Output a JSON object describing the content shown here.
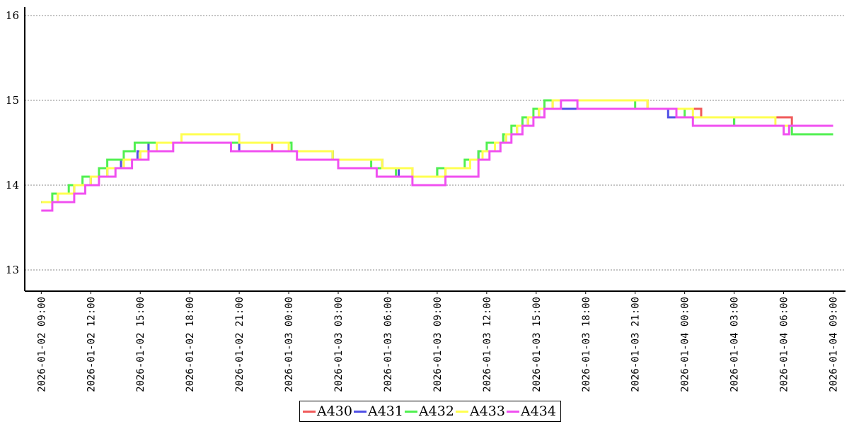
{
  "chart_data": {
    "type": "line",
    "title": "",
    "xlabel": "",
    "ylabel": "",
    "ylim": [
      12.75,
      16.1
    ],
    "y_ticks": [
      "13",
      "14",
      "15",
      "16"
    ],
    "grid": "horizontal dotted",
    "legend_position": "bottom-center",
    "x_ticks": [
      "2026-01-02 09:00",
      "2026-01-02 12:00",
      "2026-01-02 15:00",
      "2026-01-02 18:00",
      "2026-01-02 21:00",
      "2026-01-03 00:00",
      "2026-01-03 03:00",
      "2026-01-03 06:00",
      "2026-01-03 09:00",
      "2026-01-03 12:00",
      "2026-01-03 15:00",
      "2026-01-03 18:00",
      "2026-01-03 21:00",
      "2026-01-04 00:00",
      "2026-01-04 03:00",
      "2026-01-04 06:00",
      "2026-01-04 09:00"
    ],
    "xlim": [
      "2026-01-02 08:00",
      "2026-01-04 09:45"
    ],
    "series": [
      {
        "name": "A430",
        "color": "#f05a5a",
        "points": [
          [
            "2026-01-02 09:00",
            13.8
          ],
          [
            "2026-01-02 10:00",
            13.9
          ],
          [
            "2026-01-02 11:00",
            14.0
          ],
          [
            "2026-01-02 12:00",
            14.1
          ],
          [
            "2026-01-02 13:00",
            14.2
          ],
          [
            "2026-01-02 14:00",
            14.3
          ],
          [
            "2026-01-02 15:00",
            14.4
          ],
          [
            "2026-01-02 15:30",
            14.5
          ],
          [
            "2026-01-02 23:00",
            14.4
          ],
          [
            "2026-01-03 02:40",
            14.3
          ],
          [
            "2026-01-03 05:40",
            14.2
          ],
          [
            "2026-01-03 07:30",
            14.1
          ],
          [
            "2026-01-03 09:30",
            14.2
          ],
          [
            "2026-01-03 11:00",
            14.3
          ],
          [
            "2026-01-03 11:45",
            14.4
          ],
          [
            "2026-01-03 12:30",
            14.5
          ],
          [
            "2026-01-03 13:10",
            14.6
          ],
          [
            "2026-01-03 13:50",
            14.7
          ],
          [
            "2026-01-03 14:30",
            14.8
          ],
          [
            "2026-01-03 15:10",
            14.9
          ],
          [
            "2026-01-03 16:00",
            15.0
          ],
          [
            "2026-01-03 21:45",
            14.9
          ],
          [
            "2026-01-04 01:00",
            14.8
          ],
          [
            "2026-01-04 06:30",
            14.7
          ],
          [
            "2026-01-04 09:00",
            14.7
          ]
        ]
      },
      {
        "name": "A431",
        "color": "#5050e6",
        "points": [
          [
            "2026-01-02 09:00",
            13.8
          ],
          [
            "2026-01-02 10:00",
            13.9
          ],
          [
            "2026-01-02 11:00",
            14.0
          ],
          [
            "2026-01-02 12:00",
            14.1
          ],
          [
            "2026-01-02 13:00",
            14.2
          ],
          [
            "2026-01-02 13:50",
            14.3
          ],
          [
            "2026-01-02 14:50",
            14.4
          ],
          [
            "2026-01-02 15:30",
            14.5
          ],
          [
            "2026-01-02 21:00",
            14.4
          ],
          [
            "2026-01-03 02:40",
            14.3
          ],
          [
            "2026-01-03 05:40",
            14.2
          ],
          [
            "2026-01-03 06:40",
            14.1
          ],
          [
            "2026-01-03 09:00",
            14.2
          ],
          [
            "2026-01-03 11:00",
            14.3
          ],
          [
            "2026-01-03 11:30",
            14.4
          ],
          [
            "2026-01-03 12:30",
            14.5
          ],
          [
            "2026-01-03 13:10",
            14.6
          ],
          [
            "2026-01-03 13:50",
            14.7
          ],
          [
            "2026-01-03 14:30",
            14.8
          ],
          [
            "2026-01-03 15:10",
            14.9
          ],
          [
            "2026-01-03 18:00",
            14.9
          ],
          [
            "2026-01-03 23:00",
            14.8
          ],
          [
            "2026-01-04 03:00",
            14.7
          ],
          [
            "2026-01-04 09:00",
            14.7
          ]
        ]
      },
      {
        "name": "A432",
        "color": "#50f050",
        "points": [
          [
            "2026-01-02 09:00",
            13.8
          ],
          [
            "2026-01-02 09:40",
            13.9
          ],
          [
            "2026-01-02 10:40",
            14.0
          ],
          [
            "2026-01-02 11:30",
            14.1
          ],
          [
            "2026-01-02 12:30",
            14.2
          ],
          [
            "2026-01-02 13:00",
            14.3
          ],
          [
            "2026-01-02 14:00",
            14.4
          ],
          [
            "2026-01-02 14:40",
            14.5
          ],
          [
            "2026-01-02 16:00",
            14.5
          ],
          [
            "2026-01-03 00:10",
            14.4
          ],
          [
            "2026-01-03 02:40",
            14.3
          ],
          [
            "2026-01-03 05:00",
            14.2
          ],
          [
            "2026-01-03 06:30",
            14.1
          ],
          [
            "2026-01-03 09:00",
            14.2
          ],
          [
            "2026-01-03 10:40",
            14.3
          ],
          [
            "2026-01-03 11:30",
            14.4
          ],
          [
            "2026-01-03 12:00",
            14.5
          ],
          [
            "2026-01-03 13:00",
            14.6
          ],
          [
            "2026-01-03 13:30",
            14.7
          ],
          [
            "2026-01-03 14:10",
            14.8
          ],
          [
            "2026-01-03 14:50",
            14.9
          ],
          [
            "2026-01-03 15:30",
            15.0
          ],
          [
            "2026-01-03 21:00",
            14.9
          ],
          [
            "2026-01-04 00:00",
            14.8
          ],
          [
            "2026-01-04 03:00",
            14.7
          ],
          [
            "2026-01-04 06:30",
            14.6
          ],
          [
            "2026-01-04 09:00",
            14.6
          ]
        ]
      },
      {
        "name": "A433",
        "color": "#ffff50",
        "points": [
          [
            "2026-01-02 09:00",
            13.8
          ],
          [
            "2026-01-02 10:00",
            13.9
          ],
          [
            "2026-01-02 11:00",
            14.0
          ],
          [
            "2026-01-02 12:00",
            14.1
          ],
          [
            "2026-01-02 13:00",
            14.2
          ],
          [
            "2026-01-02 14:00",
            14.3
          ],
          [
            "2026-01-02 15:00",
            14.4
          ],
          [
            "2026-01-02 16:00",
            14.5
          ],
          [
            "2026-01-02 17:30",
            14.6
          ],
          [
            "2026-01-02 21:00",
            14.5
          ],
          [
            "2026-01-03 00:00",
            14.4
          ],
          [
            "2026-01-03 02:40",
            14.3
          ],
          [
            "2026-01-03 05:40",
            14.2
          ],
          [
            "2026-01-03 07:30",
            14.1
          ],
          [
            "2026-01-03 09:30",
            14.2
          ],
          [
            "2026-01-03 11:00",
            14.3
          ],
          [
            "2026-01-03 11:45",
            14.4
          ],
          [
            "2026-01-03 12:30",
            14.5
          ],
          [
            "2026-01-03 13:10",
            14.6
          ],
          [
            "2026-01-03 13:50",
            14.7
          ],
          [
            "2026-01-03 14:30",
            14.8
          ],
          [
            "2026-01-03 15:10",
            14.9
          ],
          [
            "2026-01-03 16:00",
            15.0
          ],
          [
            "2026-01-03 21:45",
            14.9
          ],
          [
            "2026-01-04 00:30",
            14.8
          ],
          [
            "2026-01-04 05:30",
            14.7
          ],
          [
            "2026-01-04 09:00",
            14.7
          ]
        ]
      },
      {
        "name": "A434",
        "color": "#f050f0",
        "points": [
          [
            "2026-01-02 09:00",
            13.7
          ],
          [
            "2026-01-02 09:40",
            13.8
          ],
          [
            "2026-01-02 11:00",
            13.9
          ],
          [
            "2026-01-02 11:40",
            14.0
          ],
          [
            "2026-01-02 12:30",
            14.1
          ],
          [
            "2026-01-02 13:30",
            14.2
          ],
          [
            "2026-01-02 14:30",
            14.3
          ],
          [
            "2026-01-02 15:30",
            14.4
          ],
          [
            "2026-01-02 17:00",
            14.5
          ],
          [
            "2026-01-02 20:30",
            14.4
          ],
          [
            "2026-01-03 00:30",
            14.3
          ],
          [
            "2026-01-03 03:00",
            14.2
          ],
          [
            "2026-01-03 05:20",
            14.1
          ],
          [
            "2026-01-03 07:30",
            14.0
          ],
          [
            "2026-01-03 09:30",
            14.1
          ],
          [
            "2026-01-03 11:30",
            14.3
          ],
          [
            "2026-01-03 12:10",
            14.4
          ],
          [
            "2026-01-03 12:50",
            14.5
          ],
          [
            "2026-01-03 13:30",
            14.6
          ],
          [
            "2026-01-03 14:10",
            14.7
          ],
          [
            "2026-01-03 14:50",
            14.8
          ],
          [
            "2026-01-03 15:30",
            14.9
          ],
          [
            "2026-01-03 16:30",
            15.0
          ],
          [
            "2026-01-03 17:30",
            14.9
          ],
          [
            "2026-01-03 23:30",
            14.8
          ],
          [
            "2026-01-04 00:30",
            14.7
          ],
          [
            "2026-01-04 06:00",
            14.6
          ],
          [
            "2026-01-04 06:20",
            14.7
          ],
          [
            "2026-01-04 09:00",
            14.7
          ]
        ]
      }
    ]
  }
}
